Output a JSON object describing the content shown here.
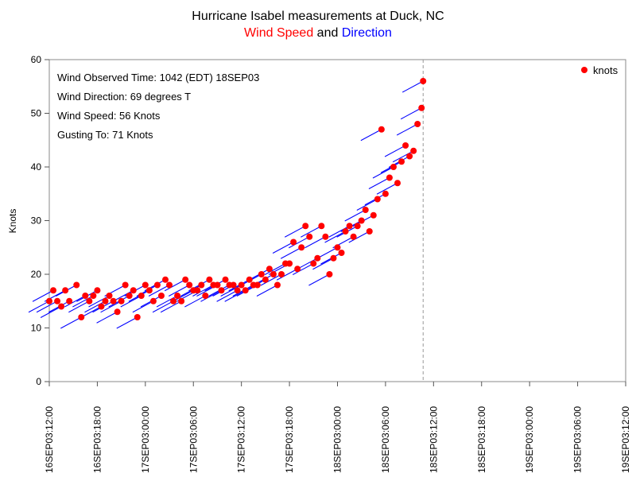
{
  "chart_data": {
    "type": "scatter",
    "title": "Hurricane Isabel measurements at Duck, NC",
    "subtitle": {
      "part1": "Wind Speed",
      "part1_color": "#ff0000",
      "part2": " and ",
      "part3": "Direction",
      "part3_color": "#0000ff"
    },
    "ylabel": "Knots",
    "xlabel": "",
    "ylim": [
      0,
      60
    ],
    "yticks": [
      0,
      10,
      20,
      30,
      40,
      50,
      60
    ],
    "xlim_hours": [
      0,
      72
    ],
    "x_ticks": [
      "16SEP03:12:00",
      "16SEP03:18:00",
      "17SEP03:00:00",
      "17SEP03:06:00",
      "17SEP03:12:00",
      "17SEP03:18:00",
      "18SEP03:00:00",
      "18SEP03:06:00",
      "18SEP03:12:00",
      "18SEP03:18:00",
      "19SEP03:00:00",
      "19SEP03:06:00",
      "19SEP03:12:00"
    ],
    "reference_line_x_hours": 46.7,
    "annotations": [
      "Wind Observed Time: 1042 (EDT) 18SEP03",
      "Wind Direction: 69 degrees T",
      "Wind Speed: 56 Knots",
      "Gusting To: 71 Knots"
    ],
    "legend": {
      "label": "knots",
      "position": "top-right",
      "marker_color": "#ff0000"
    },
    "series": [
      {
        "name": "knots",
        "marker_color": "#ff0000",
        "direction_color": "#0000ff",
        "points": [
          {
            "x": 0.0,
            "y": 15
          },
          {
            "x": 0.5,
            "y": 17
          },
          {
            "x": 1.0,
            "y": 15
          },
          {
            "x": 1.5,
            "y": 14
          },
          {
            "x": 2.0,
            "y": 17
          },
          {
            "x": 2.5,
            "y": 15
          },
          {
            "x": 3.4,
            "y": 18
          },
          {
            "x": 4.0,
            "y": 12
          },
          {
            "x": 4.5,
            "y": 16
          },
          {
            "x": 5.0,
            "y": 15
          },
          {
            "x": 5.5,
            "y": 16
          },
          {
            "x": 6.0,
            "y": 17
          },
          {
            "x": 6.5,
            "y": 14
          },
          {
            "x": 7.0,
            "y": 15
          },
          {
            "x": 7.5,
            "y": 16
          },
          {
            "x": 8.0,
            "y": 15
          },
          {
            "x": 8.5,
            "y": 13
          },
          {
            "x": 9.0,
            "y": 15
          },
          {
            "x": 9.5,
            "y": 18
          },
          {
            "x": 10.0,
            "y": 16
          },
          {
            "x": 10.5,
            "y": 17
          },
          {
            "x": 11.0,
            "y": 12
          },
          {
            "x": 11.5,
            "y": 16
          },
          {
            "x": 12.0,
            "y": 18
          },
          {
            "x": 12.5,
            "y": 17
          },
          {
            "x": 13.0,
            "y": 15
          },
          {
            "x": 13.5,
            "y": 18
          },
          {
            "x": 14.0,
            "y": 16
          },
          {
            "x": 14.5,
            "y": 19
          },
          {
            "x": 15.0,
            "y": 18
          },
          {
            "x": 15.5,
            "y": 15
          },
          {
            "x": 16.0,
            "y": 16
          },
          {
            "x": 16.5,
            "y": 15
          },
          {
            "x": 17.0,
            "y": 19
          },
          {
            "x": 17.5,
            "y": 18
          },
          {
            "x": 18.0,
            "y": 17
          },
          {
            "x": 18.5,
            "y": 17
          },
          {
            "x": 19.0,
            "y": 18
          },
          {
            "x": 19.5,
            "y": 16
          },
          {
            "x": 20.0,
            "y": 19
          },
          {
            "x": 20.5,
            "y": 18
          },
          {
            "x": 21.0,
            "y": 18
          },
          {
            "x": 21.5,
            "y": 17
          },
          {
            "x": 22.0,
            "y": 19
          },
          {
            "x": 22.5,
            "y": 18
          },
          {
            "x": 23.0,
            "y": 18
          },
          {
            "x": 23.5,
            "y": 17
          },
          {
            "x": 24.0,
            "y": 18
          },
          {
            "x": 24.5,
            "y": 17
          },
          {
            "x": 25.0,
            "y": 19
          },
          {
            "x": 25.5,
            "y": 18
          },
          {
            "x": 26.0,
            "y": 18
          },
          {
            "x": 26.5,
            "y": 20
          },
          {
            "x": 27.0,
            "y": 19
          },
          {
            "x": 27.5,
            "y": 21
          },
          {
            "x": 28.0,
            "y": 20
          },
          {
            "x": 28.5,
            "y": 18
          },
          {
            "x": 29.0,
            "y": 20
          },
          {
            "x": 29.5,
            "y": 22
          },
          {
            "x": 30.0,
            "y": 22
          },
          {
            "x": 30.5,
            "y": 26
          },
          {
            "x": 31.0,
            "y": 21
          },
          {
            "x": 31.5,
            "y": 25
          },
          {
            "x": 32.0,
            "y": 29
          },
          {
            "x": 32.5,
            "y": 27
          },
          {
            "x": 33.0,
            "y": 22
          },
          {
            "x": 33.5,
            "y": 23
          },
          {
            "x": 34.0,
            "y": 29
          },
          {
            "x": 34.5,
            "y": 27
          },
          {
            "x": 35.0,
            "y": 20
          },
          {
            "x": 35.5,
            "y": 23
          },
          {
            "x": 36.0,
            "y": 25
          },
          {
            "x": 36.5,
            "y": 24
          },
          {
            "x": 37.0,
            "y": 28
          },
          {
            "x": 37.5,
            "y": 29
          },
          {
            "x": 38.0,
            "y": 27
          },
          {
            "x": 38.5,
            "y": 29
          },
          {
            "x": 39.0,
            "y": 30
          },
          {
            "x": 39.5,
            "y": 32
          },
          {
            "x": 40.0,
            "y": 28
          },
          {
            "x": 40.5,
            "y": 31
          },
          {
            "x": 41.0,
            "y": 34
          },
          {
            "x": 41.5,
            "y": 47
          },
          {
            "x": 42.0,
            "y": 35
          },
          {
            "x": 42.5,
            "y": 38
          },
          {
            "x": 43.0,
            "y": 40
          },
          {
            "x": 43.5,
            "y": 37
          },
          {
            "x": 44.0,
            "y": 41
          },
          {
            "x": 44.5,
            "y": 44
          },
          {
            "x": 45.0,
            "y": 42
          },
          {
            "x": 45.5,
            "y": 43
          },
          {
            "x": 46.0,
            "y": 48
          },
          {
            "x": 46.5,
            "y": 51
          },
          {
            "x": 46.7,
            "y": 56
          }
        ]
      }
    ]
  }
}
